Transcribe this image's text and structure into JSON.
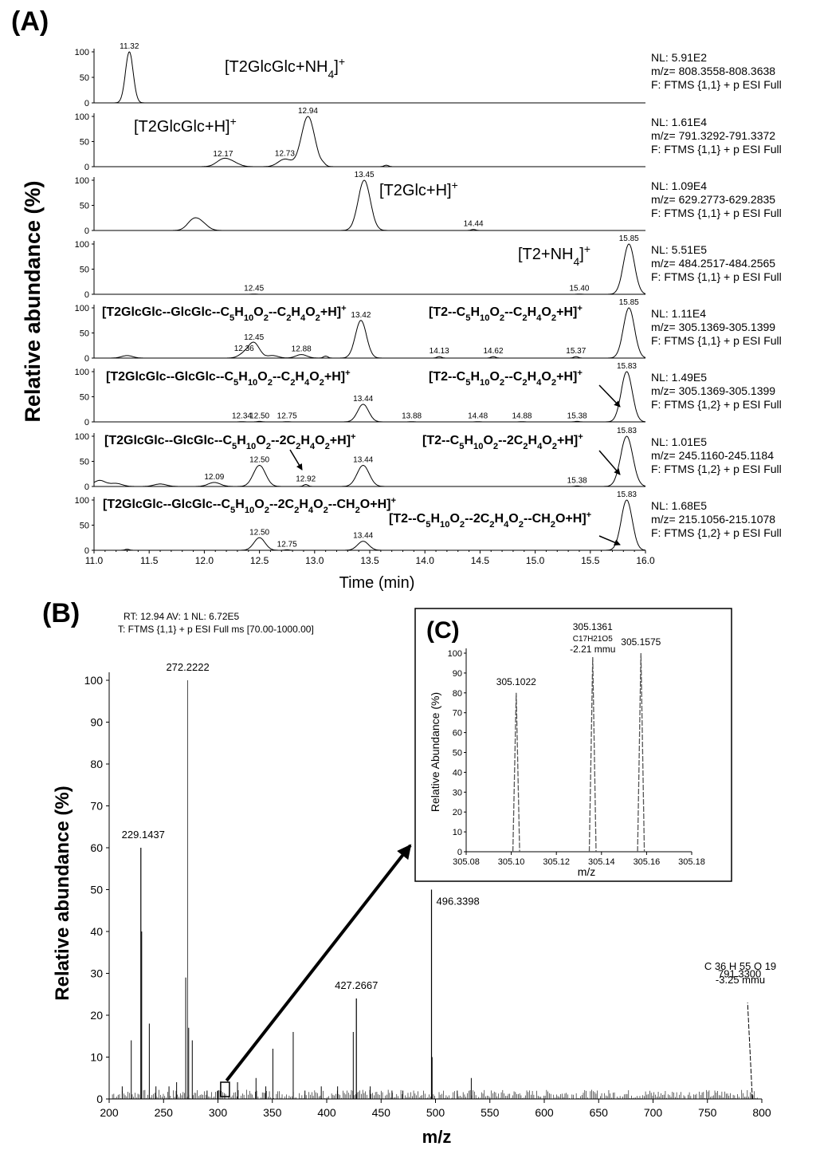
{
  "panels": {
    "a": "(A)",
    "b": "(B)",
    "c": "(C)"
  },
  "panel_a": {
    "ylabel": "Relative abundance (%)",
    "xlabel": "Time (min)",
    "xlim": [
      11.0,
      16.0
    ],
    "xticks": [
      "11.0",
      "11.5",
      "12.0",
      "12.5",
      "13.0",
      "13.5",
      "14.0",
      "14.5",
      "15.0",
      "15.5",
      "16.0"
    ],
    "yticks_first": [
      "100",
      "50",
      "0"
    ],
    "yticks": [
      "100",
      "50",
      "0"
    ]
  },
  "panel_b": {
    "header1": "RT: 12.94  AV: 1  NL: 6.72E5",
    "header2": "T: FTMS {1,1}  + p ESI Full ms [70.00-1000.00]",
    "ylabel": "Relative abundance (%)",
    "xlabel": "m/z",
    "yticks": [
      "0",
      "10",
      "20",
      "30",
      "40",
      "50",
      "60",
      "70",
      "80",
      "90",
      "100"
    ],
    "xticks": [
      "200",
      "250",
      "300",
      "350",
      "400",
      "450",
      "500",
      "550",
      "600",
      "650",
      "700",
      "750",
      "800"
    ],
    "formula_791": "C 36 H 55 O 19",
    "mmu_791": "-3.25 mmu"
  },
  "panel_c": {
    "ylabel": "Relative Abundance (%)",
    "xlabel": "m/z",
    "yticks": [
      "0",
      "10",
      "20",
      "30",
      "40",
      "50",
      "60",
      "70",
      "80",
      "90",
      "100"
    ],
    "xticks": [
      "305.08",
      "305.10",
      "305.12",
      "305.14",
      "305.16",
      "305.18"
    ],
    "formula": "C17H21O5",
    "mmu": "-2.21 mmu"
  },
  "chart_data": [
    {
      "type": "line",
      "title": "",
      "xlabel": "Time (min)",
      "ylabel": "Relative abundance (%)",
      "xlim": [
        11.0,
        16.0
      ],
      "ylim": [
        0,
        100
      ],
      "series": [
        {
          "name": "[T2GlcGlc+NH4]+",
          "nl": "NL: 5.91E2",
          "mz": "m/z= 808.3558-808.3638",
          "filter": "F: FTMS {1,1}  + p ESI Full",
          "peaks": [
            {
              "x": 11.32,
              "y": 100,
              "label": "11.32"
            }
          ],
          "labels": [
            {
              "main": "[T2GlcGlc+NH",
              "sub": "4",
              "rest": "]",
              "sup": "+"
            }
          ]
        },
        {
          "name": "[T2GlcGlc+H]+",
          "nl": "NL: 1.61E4",
          "mz": "m/z= 791.3292-791.3372",
          "filter": "F: FTMS {1,1}  + p ESI Full",
          "peaks": [
            {
              "x": 12.17,
              "y": 14,
              "label": "12.17"
            },
            {
              "x": 12.26,
              "y": 7
            },
            {
              "x": 12.73,
              "y": 15,
              "label": "12.73"
            },
            {
              "x": 12.94,
              "y": 100,
              "label": "12.94"
            },
            {
              "x": 13.08,
              "y": 3
            },
            {
              "x": 13.65,
              "y": 3
            }
          ],
          "labels": [
            {
              "main": "[T2GlcGlc+H]",
              "sub": "",
              "rest": "",
              "sup": "+"
            }
          ]
        },
        {
          "name": "[T2Glc+H]+",
          "nl": "NL: 1.09E4",
          "mz": "m/z= 629.2773-629.2835",
          "filter": "F: FTMS {1,1}  + p ESI Full",
          "peaks": [
            {
              "x": 11.9,
              "y": 20
            },
            {
              "x": 11.98,
              "y": 12
            },
            {
              "x": 13.45,
              "y": 100,
              "label": "13.45"
            },
            {
              "x": 14.44,
              "y": 2,
              "label": "14.44"
            }
          ],
          "labels": [
            {
              "main": "[T2Glc+H]",
              "sub": "",
              "rest": "",
              "sup": "+"
            }
          ]
        },
        {
          "name": "[T2+NH4]+",
          "nl": "NL: 5.51E5",
          "mz": "m/z= 484.2517-484.2565",
          "filter": "F: FTMS {1,1}  + p ESI Full",
          "peaks": [
            {
              "x": 12.45,
              "y": 0.5,
              "label": "12.45"
            },
            {
              "x": 15.4,
              "y": 0.5,
              "label": "15.40"
            },
            {
              "x": 15.85,
              "y": 100,
              "label": "15.85"
            }
          ],
          "labels": [
            {
              "main": "[T2+NH",
              "sub": "4",
              "rest": "]",
              "sup": "+"
            }
          ]
        },
        {
          "name": "[T2GlcGlc--GlcGlc--C5H10O2--C2H4O2+H]+ / [T2--C5H10O2--C2H4O2+H]+",
          "nl": "NL: 1.11E4",
          "mz": "m/z= 305.1369-305.1399",
          "filter": "F: FTMS {1,1}  + p ESI Full",
          "peaks": [
            {
              "x": 11.3,
              "y": 5
            },
            {
              "x": 12.36,
              "y": 8,
              "label": "12.36"
            },
            {
              "x": 12.45,
              "y": 30,
              "label": "12.45"
            },
            {
              "x": 12.62,
              "y": 5
            },
            {
              "x": 12.88,
              "y": 7,
              "label": "12.88"
            },
            {
              "x": 13.1,
              "y": 4
            },
            {
              "x": 13.42,
              "y": 75,
              "label": "13.42"
            },
            {
              "x": 14.13,
              "y": 3,
              "label": "14.13"
            },
            {
              "x": 14.62,
              "y": 3,
              "label": "14.62"
            },
            {
              "x": 15.37,
              "y": 3,
              "label": "15.37"
            },
            {
              "x": 15.85,
              "y": 100,
              "label": "15.85"
            }
          ],
          "labels": [
            {
              "main": "[T2GlcGlc--GlcGlc--C",
              "sub": "5",
              "rest": "H",
              "sub2": "10",
              "rest2": "O",
              "sub3": "2",
              "rest3": "--C",
              "sub4": "2",
              "rest4": "H",
              "sub5": "4",
              "rest5": "O",
              "sub6": "2",
              "rest6": "+H]",
              "sup": "+"
            },
            {
              "main": "[T2--C",
              "sub": "5",
              "rest": "H",
              "sub2": "10",
              "rest2": "O",
              "sub3": "2",
              "rest3": "--C",
              "sub4": "2",
              "rest4": "H",
              "sub5": "4",
              "rest5": "O",
              "sub6": "2",
              "rest6": "+H]",
              "sup": "+"
            }
          ]
        },
        {
          "name": "[T2GlcGlc--GlcGlc--C5H10O2--C2H4O2+H]+ / [T2--C5H10O2--C2H4O2+H]+ (1,2)",
          "nl": "NL: 1.49E5",
          "mz": "m/z= 305.1369-305.1399",
          "filter": "F: FTMS {1,2}  + p ESI Full",
          "peaks": [
            {
              "x": 12.34,
              "y": 0.5,
              "label": "12.34"
            },
            {
              "x": 12.5,
              "y": 1,
              "label": "12.50"
            },
            {
              "x": 12.75,
              "y": 0.5,
              "label": "12.75"
            },
            {
              "x": 13.44,
              "y": 35,
              "label": "13.44"
            },
            {
              "x": 13.88,
              "y": 0.5,
              "label": "13.88"
            },
            {
              "x": 14.48,
              "y": 0.5,
              "label": "14.48"
            },
            {
              "x": 14.88,
              "y": 0.5,
              "label": "14.88"
            },
            {
              "x": 15.38,
              "y": 1,
              "label": "15.38"
            },
            {
              "x": 15.83,
              "y": 100,
              "label": "15.83"
            }
          ],
          "labels": [
            {
              "main": "[T2GlcGlc--GlcGlc--C",
              "sub": "5",
              "rest": "H",
              "sub2": "10",
              "rest2": "O",
              "sub3": "2",
              "rest3": "--C",
              "sub4": "2",
              "rest4": "H",
              "sub5": "4",
              "rest5": "O",
              "sub6": "2",
              "rest6": "+H]",
              "sup": "+"
            },
            {
              "main": "[T2--C",
              "sub": "5",
              "rest": "H",
              "sub2": "10",
              "rest2": "O",
              "sub3": "2",
              "rest3": "--C",
              "sub4": "2",
              "rest4": "H",
              "sub5": "4",
              "rest5": "O",
              "sub6": "2",
              "rest6": "+H]",
              "sup": "+"
            }
          ]
        },
        {
          "name": "[T2GlcGlc--GlcGlc--C5H10O2--2C2H4O2+H]+ / [T2--C5H10O2--2C2H4O2+H]+",
          "nl": "NL: 1.01E5",
          "mz": "m/z= 245.1160-245.1184",
          "filter": "F: FTMS {1,2}  + p ESI Full",
          "peaks": [
            {
              "x": 11.05,
              "y": 12
            },
            {
              "x": 11.2,
              "y": 6
            },
            {
              "x": 11.6,
              "y": 5
            },
            {
              "x": 12.09,
              "y": 8,
              "label": "12.09"
            },
            {
              "x": 12.5,
              "y": 42,
              "label": "12.50"
            },
            {
              "x": 12.92,
              "y": 4,
              "label": "12.92"
            },
            {
              "x": 13.44,
              "y": 42,
              "label": "13.44"
            },
            {
              "x": 15.38,
              "y": 1,
              "label": "15.38"
            },
            {
              "x": 15.83,
              "y": 100,
              "label": "15.83"
            }
          ],
          "labels": [
            {
              "main": "[T2GlcGlc--GlcGlc--C",
              "sub": "5",
              "rest": "H",
              "sub2": "10",
              "rest2": "O",
              "sub3": "2",
              "rest3": "--2C",
              "sub4": "2",
              "rest4": "H",
              "sub5": "4",
              "rest5": "O",
              "sub6": "2",
              "rest6": "+H]",
              "sup": "+"
            },
            {
              "main": "[T2--C",
              "sub": "5",
              "rest": "H",
              "sub2": "10",
              "rest2": "O",
              "sub3": "2",
              "rest3": "--2C",
              "sub4": "2",
              "rest4": "H",
              "sub5": "4",
              "rest5": "O",
              "sub6": "2",
              "rest6": "+H]",
              "sup": "+"
            }
          ]
        },
        {
          "name": "[T2GlcGlc--GlcGlc--C5H10O2--2C2H4O2--CH2O+H]+ / [T2--C5H10O2--2C2H4O2--CH2O+H]+",
          "nl": "NL: 1.68E5",
          "mz": "m/z= 215.1056-215.1078",
          "filter": "F: FTMS {1,2}  + p ESI Full",
          "peaks": [
            {
              "x": 11.3,
              "y": 2
            },
            {
              "x": 12.5,
              "y": 25,
              "label": "12.50"
            },
            {
              "x": 12.75,
              "y": 1,
              "label": "12.75"
            },
            {
              "x": 13.44,
              "y": 18,
              "label": "13.44"
            },
            {
              "x": 15.83,
              "y": 100,
              "label": "15.83"
            }
          ],
          "labels": [
            {
              "main": "[T2GlcGlc--GlcGlc--C",
              "sub": "5",
              "rest": "H",
              "sub2": "10",
              "rest2": "O",
              "sub3": "2",
              "rest3": "--2C",
              "sub4": "2",
              "rest4": "H",
              "sub5": "4",
              "rest5": "O",
              "sub6": "2",
              "rest6": "--CH",
              "sub7": "2",
              "rest7": "O+H]",
              "sup": "+"
            },
            {
              "main": "[T2--C",
              "sub": "5",
              "rest": "H",
              "sub2": "10",
              "rest2": "O",
              "sub3": "2",
              "rest3": "--2C",
              "sub4": "2",
              "rest4": "H",
              "sub5": "4",
              "rest5": "O",
              "sub6": "2",
              "rest6": "--CH",
              "sub7": "2",
              "rest7": "O+H]",
              "sup": "+"
            }
          ]
        }
      ]
    },
    {
      "type": "bar",
      "title": "",
      "xlabel": "m/z",
      "ylabel": "Relative abundance (%)",
      "xlim": [
        200,
        800
      ],
      "ylim": [
        0,
        100
      ],
      "labeled_peaks": [
        {
          "x": 272.2222,
          "y": 100,
          "label": "272.2222"
        },
        {
          "x": 229.1437,
          "y": 60,
          "label": "229.1437"
        },
        {
          "x": 496.3398,
          "y": 50,
          "label": "496.3398"
        },
        {
          "x": 427.2667,
          "y": 24,
          "label": "427.2667"
        },
        {
          "x": 791.33,
          "y": 23,
          "label": "791.3300"
        }
      ],
      "other_peaks": [
        {
          "x": 220.3,
          "y": 14
        },
        {
          "x": 229.9,
          "y": 40
        },
        {
          "x": 236.9,
          "y": 18
        },
        {
          "x": 270.4,
          "y": 29
        },
        {
          "x": 273.1,
          "y": 17
        },
        {
          "x": 276.4,
          "y": 14
        },
        {
          "x": 350.5,
          "y": 12
        },
        {
          "x": 369.2,
          "y": 16
        },
        {
          "x": 424.4,
          "y": 16
        },
        {
          "x": 496.9,
          "y": 10
        },
        {
          "x": 532.9,
          "y": 5
        },
        {
          "x": 318.0,
          "y": 4
        },
        {
          "x": 335.0,
          "y": 5
        },
        {
          "x": 255.0,
          "y": 3
        },
        {
          "x": 212.0,
          "y": 3
        },
        {
          "x": 290.0,
          "y": 2
        },
        {
          "x": 395.0,
          "y": 3
        },
        {
          "x": 410.0,
          "y": 3
        },
        {
          "x": 440.0,
          "y": 3
        },
        {
          "x": 460.0,
          "y": 2
        },
        {
          "x": 243.0,
          "y": 3
        },
        {
          "x": 262.0,
          "y": 4
        },
        {
          "x": 300.0,
          "y": 2
        },
        {
          "x": 344.0,
          "y": 3
        },
        {
          "x": 380.0,
          "y": 2
        },
        {
          "x": 520.0,
          "y": 2
        },
        {
          "x": 470.0,
          "y": 2
        }
      ]
    },
    {
      "type": "line",
      "title": "",
      "xlabel": "m/z",
      "ylabel": "Relative Abundance (%)",
      "xlim": [
        305.08,
        305.18
      ],
      "ylim": [
        0,
        100
      ],
      "peaks": [
        {
          "x": 305.1022,
          "y": 80,
          "label": "305.1022"
        },
        {
          "x": 305.1361,
          "y": 98,
          "label": "305.1361"
        },
        {
          "x": 305.1575,
          "y": 100,
          "label": "305.1575"
        }
      ]
    }
  ]
}
